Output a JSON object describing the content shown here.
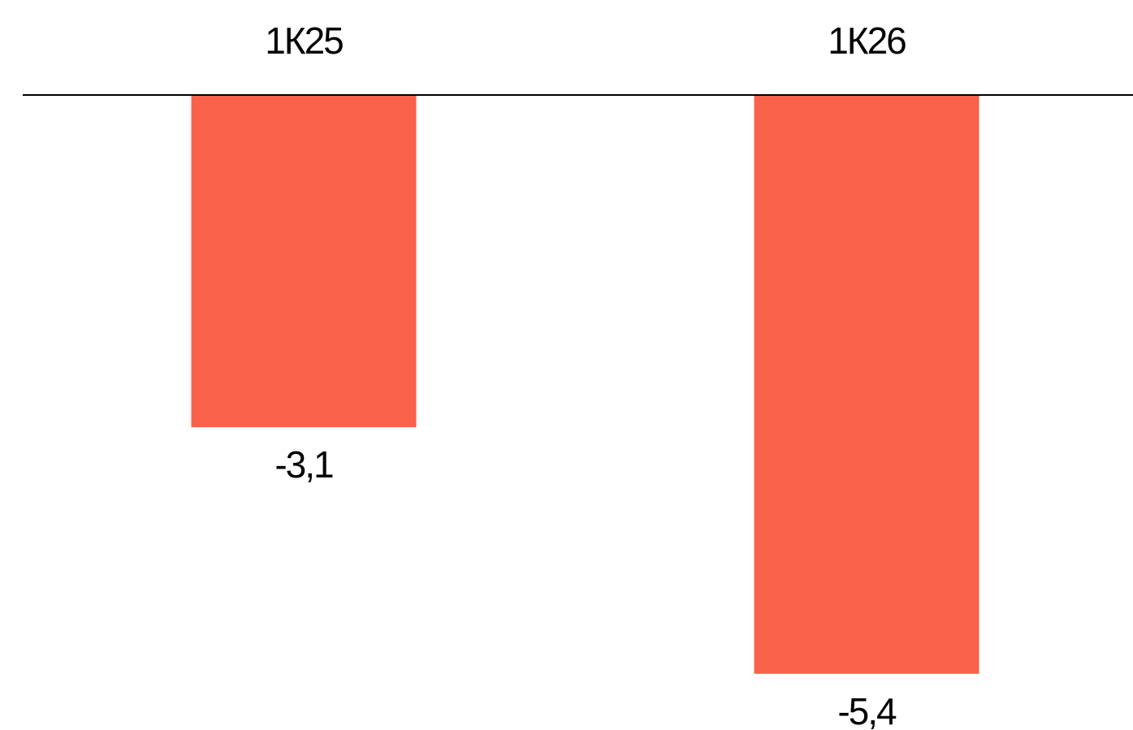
{
  "chart_data": {
    "type": "bar",
    "categories": [
      "1К25",
      "1К26"
    ],
    "values": [
      -3.1,
      -5.4
    ],
    "value_labels": [
      "-3,1",
      "-5,4"
    ],
    "title": "",
    "xlabel": "",
    "ylabel": "",
    "ylim": [
      -5.4,
      0
    ],
    "grid": false,
    "category_axis_position": "top",
    "bar_color": "#F8624B",
    "axis_color": "#000000"
  }
}
